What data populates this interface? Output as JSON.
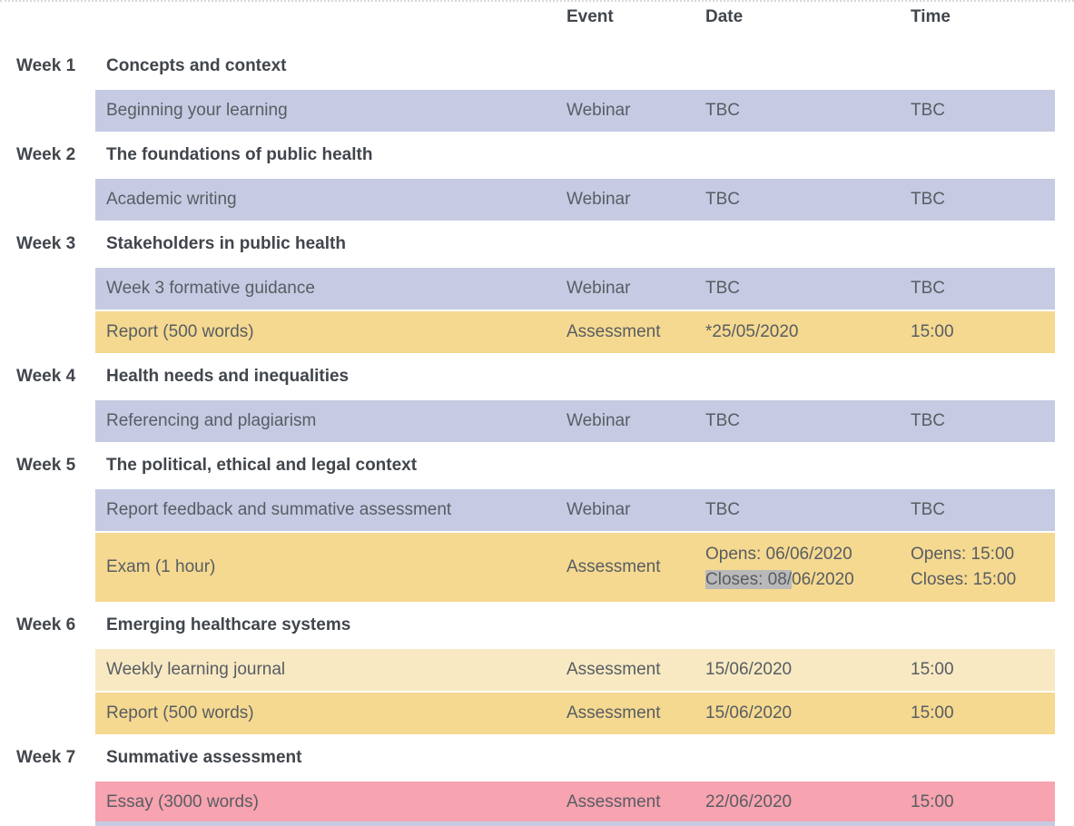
{
  "columns": {
    "event": "Event",
    "date": "Date",
    "time": "Time"
  },
  "weeks": [
    {
      "label": "Week 1",
      "title": "Concepts and context",
      "rows": [
        {
          "activity": "Beginning your learning",
          "event": "Webinar",
          "date": "TBC",
          "time": "TBC"
        }
      ]
    },
    {
      "label": "Week 2",
      "title": "The foundations of public health",
      "rows": [
        {
          "activity": "Academic writing",
          "event": "Webinar",
          "date": "TBC",
          "time": "TBC"
        }
      ]
    },
    {
      "label": "Week 3",
      "title": "Stakeholders in public health",
      "rows": [
        {
          "activity": "Week 3 formative guidance",
          "event": "Webinar",
          "date": "TBC",
          "time": "TBC"
        },
        {
          "activity": "Report (500 words)",
          "event": "Assessment",
          "date": "*25/05/2020",
          "time": "15:00"
        }
      ]
    },
    {
      "label": "Week 4",
      "title": "Health needs and inequalities",
      "rows": [
        {
          "activity": "Referencing and plagiarism",
          "event": "Webinar",
          "date": "TBC",
          "time": "TBC"
        }
      ]
    },
    {
      "label": "Week 5",
      "title": "The political, ethical and legal context",
      "rows": [
        {
          "activity": "Report feedback and summative assessment",
          "event": "Webinar",
          "date": "TBC",
          "time": "TBC"
        },
        {
          "activity": "Exam (1 hour)",
          "event": "Assessment",
          "date_opens": "Opens: 06/06/2020",
          "date_closes_highlighted": "Closes: 08/",
          "date_closes_rest": "06/2020",
          "time_opens": "Opens: 15:00",
          "time_closes": "Closes: 15:00"
        }
      ]
    },
    {
      "label": "Week 6",
      "title": "Emerging healthcare systems",
      "rows": [
        {
          "activity": "Weekly learning journal",
          "event": "Assessment",
          "date": "15/06/2020",
          "time": "15:00"
        },
        {
          "activity": "Report (500 words)",
          "event": "Assessment",
          "date": "15/06/2020",
          "time": "15:00"
        }
      ]
    },
    {
      "label": "Week 7",
      "title": "Summative assessment",
      "rows": [
        {
          "activity": "Essay (3000 words)",
          "event": "Assessment",
          "date": "22/06/2020",
          "time": "15:00"
        }
      ]
    }
  ],
  "colors": {
    "webinar_row": "#c6cbe3",
    "assessment_row": "#f5d990",
    "assessment_row_light": "#f8e9c3",
    "summative_row": "#f7a3b0",
    "selection_highlight": "#b9b9b9",
    "heading_text": "#41464c",
    "row_text": "#585d63"
  }
}
